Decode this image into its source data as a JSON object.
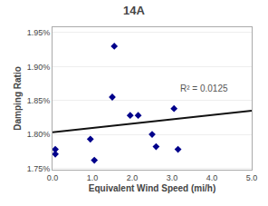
{
  "chart_data": {
    "type": "scatter",
    "title": "14A",
    "x_label": "Equivalent Wind Speed (mi/h)",
    "y_label": "Damping Ratio",
    "series": [
      {
        "type": "scatter",
        "color": "#00008B",
        "marker": "diamond",
        "x": [
          0.07,
          0.07,
          0.95,
          1.05,
          1.5,
          1.55,
          1.95,
          2.15,
          2.5,
          2.6,
          3.05,
          3.15
        ],
        "values": [
          0.01778,
          0.01771,
          0.01793,
          0.01762,
          0.01855,
          0.0193,
          0.01828,
          0.01828,
          0.018,
          0.01782,
          0.01838,
          0.01778
        ]
      },
      {
        "type": "line",
        "color": "#111111",
        "line_style": "solid",
        "x": [
          0.0,
          5.0
        ],
        "values": [
          0.01803,
          0.01835
        ]
      }
    ],
    "annotations": [
      {
        "text": "R² = 0.0125",
        "color": "#555555"
      }
    ],
    "xlim": [
      0.0,
      5.0
    ],
    "ylim": [
      0.01748,
      0.01958
    ],
    "xticks": [
      {
        "value": 0.0,
        "label": "0.0"
      },
      {
        "value": 1.0,
        "label": "1.0"
      },
      {
        "value": 2.0,
        "label": "2.0"
      },
      {
        "value": 3.0,
        "label": "3.0"
      },
      {
        "value": 4.0,
        "label": "4.0"
      },
      {
        "value": 5.0,
        "label": "5.0"
      }
    ],
    "yticks": [
      {
        "value": 0.0175,
        "label": "1.75%"
      },
      {
        "value": 0.018,
        "label": "1.80%"
      },
      {
        "value": 0.0185,
        "label": "1.85%"
      },
      {
        "value": 0.019,
        "label": "1.90%"
      },
      {
        "value": 0.0195,
        "label": "1.95%"
      }
    ],
    "grid": "y"
  }
}
